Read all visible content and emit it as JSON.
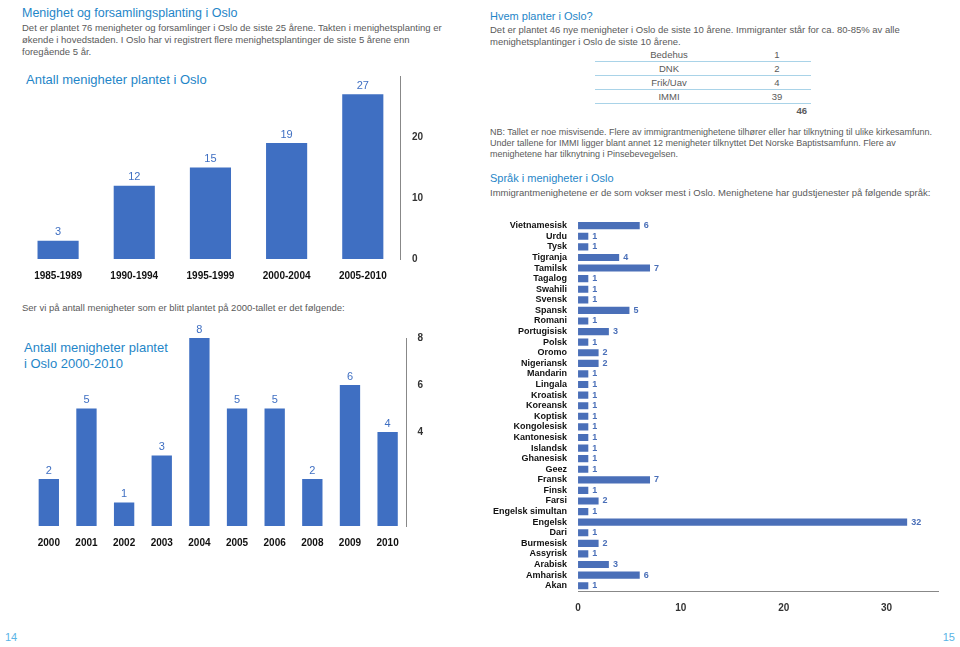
{
  "left_page": {
    "title": "Menighet og forsamlingsplanting i Oslo",
    "text": "Det er plantet 76 menigheter og forsamlinger i Oslo de siste 25 årene. Takten i menighetsplanting er økende i hovedstaden. I Oslo har vi registrert flere menighetsplantinger de siste 5 årene enn foregående 5 år.",
    "middle_text": "Ser vi på antall menigheter som er blitt plantet på 2000-tallet er det følgende:",
    "page_number": "14"
  },
  "right_page": {
    "title": "Hvem planter i Oslo?",
    "text": "Det er plantet 46 nye menigheter i  Oslo de siste 10 årene. Immigranter står for ca. 80-85% av alle menighetsplantinger i Oslo de siste 10 årene.",
    "table": {
      "rows": [
        [
          "Bedehus",
          1
        ],
        [
          "DNK",
          2
        ],
        [
          "Frik/Uav",
          4
        ],
        [
          "IMMI",
          39
        ]
      ],
      "total": 46
    },
    "note": "NB: Tallet er noe misvisende. Flere av immigrantmenighetene tilhører eller har tilknytning til ulike kirkesamfunn. Under tallene for IMMI ligger blant annet 12 menigheter tilknyttet Det Norske Baptistsamfunn. Flere av menighetene har tilknytning i Pinsebevegelsen.",
    "subtitle": "Språk i menigheter i Oslo",
    "subtext": "Immigrantmenighetene er de som vokser mest i Oslo. Menighetene har gudstjenester på følgende språk:",
    "page_number": "15"
  },
  "chart_data": [
    {
      "type": "bar",
      "title": [
        "Antall menigheter plantet i Oslo"
      ],
      "categories": [
        "1985-1989",
        "1990-1994",
        "1995-1999",
        "2000-2004",
        "2005-2010"
      ],
      "values": [
        3,
        12,
        15,
        19,
        27
      ],
      "color": "#3f6fc2",
      "ylim": [
        0,
        30
      ],
      "yticks": [
        0,
        10,
        20
      ],
      "grid": false,
      "data_labels": true
    },
    {
      "type": "bar",
      "title": [
        "Antall menigheter plantet",
        "i Oslo 2000-2010"
      ],
      "categories": [
        "2000",
        "2001",
        "2002",
        "2003",
        "2004",
        "2005",
        "2006",
        "2008",
        "2009",
        "2010"
      ],
      "values": [
        2,
        5,
        1,
        3,
        8,
        5,
        5,
        2,
        6,
        4
      ],
      "color": "#3f6fc2",
      "ylim": [
        0,
        8
      ],
      "yticks": [
        4,
        6,
        8
      ],
      "grid": false,
      "data_labels": true
    },
    {
      "type": "bar",
      "orientation": "horizontal",
      "categories": [
        "Vietnamesisk",
        "Urdu",
        "Tysk",
        "Tigranja",
        "Tamilsk",
        "Tagalog",
        "Swahili",
        "Svensk",
        "Spansk",
        "Romani",
        "Portugisisk",
        "Polsk",
        "Oromo",
        "Nigeriansk",
        "Mandarin",
        "Lingala",
        "Kroatisk",
        "Koreansk",
        "Koptisk",
        "Kongolesisk",
        "Kantonesisk",
        "Islandsk",
        "Ghanesisk",
        "Geez",
        "Fransk",
        "Finsk",
        "Farsi",
        "Engelsk simultan",
        "Engelsk",
        "Dari",
        "Burmesisk",
        "Assyrisk",
        "Arabisk",
        "Amharisk",
        "Akan"
      ],
      "values": [
        6,
        1,
        1,
        4,
        7,
        1,
        1,
        1,
        5,
        1,
        3,
        1,
        2,
        2,
        1,
        1,
        1,
        1,
        1,
        1,
        1,
        1,
        1,
        1,
        7,
        1,
        2,
        1,
        32,
        1,
        2,
        1,
        3,
        6,
        1
      ],
      "color": "#4a6fb8",
      "xlim": [
        0,
        35
      ],
      "xticks": [
        0,
        10,
        20,
        30
      ],
      "grid": false,
      "data_labels": true
    }
  ]
}
